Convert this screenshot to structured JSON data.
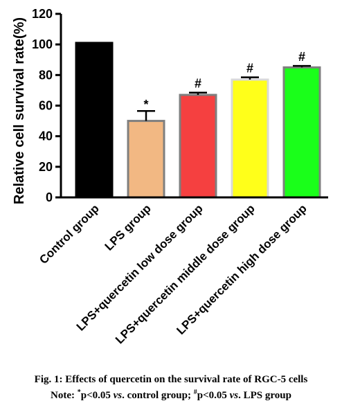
{
  "chart_data": {
    "type": "bar",
    "categories": [
      "Control group",
      "LPS group",
      "LPS+quercetin low dose group",
      "LPS+quercetin middle dose group",
      "LPS+quercetin high dose group"
    ],
    "values": [
      101,
      50,
      67,
      77,
      85
    ],
    "errors": [
      0,
      6.5,
      1.5,
      1.5,
      1
    ],
    "significance": [
      "",
      "*",
      "#",
      "#",
      "#"
    ],
    "bar_colors": [
      "#000000",
      "#f2b883",
      "#f54040",
      "#ffff1a",
      "#1aff1a"
    ],
    "bar_borders": [
      "#000000",
      "#7f7f7f",
      "#7f7f7f",
      "#d9d9d9",
      "#7f7f7f"
    ],
    "ylabel": "Relative cell survival rate(%)",
    "ylim": [
      0,
      120
    ],
    "yticks": [
      "0",
      "20",
      "40",
      "60",
      "80",
      "100",
      "120"
    ],
    "grid": false,
    "legend": "none"
  },
  "caption": {
    "line1": "Fig. 1: Effects of quercetin on the survival rate of RGC-5 cells",
    "line2_prefix": "Note: ",
    "line2_star_sup": "*",
    "line2_star_text": "p<0.05 ",
    "line2_vs1": "vs",
    "line2_mid": ". control group; ",
    "line2_hash_sup": "#",
    "line2_hash_text": "p<0.05 ",
    "line2_vs2": "vs",
    "line2_end": ". LPS group"
  }
}
